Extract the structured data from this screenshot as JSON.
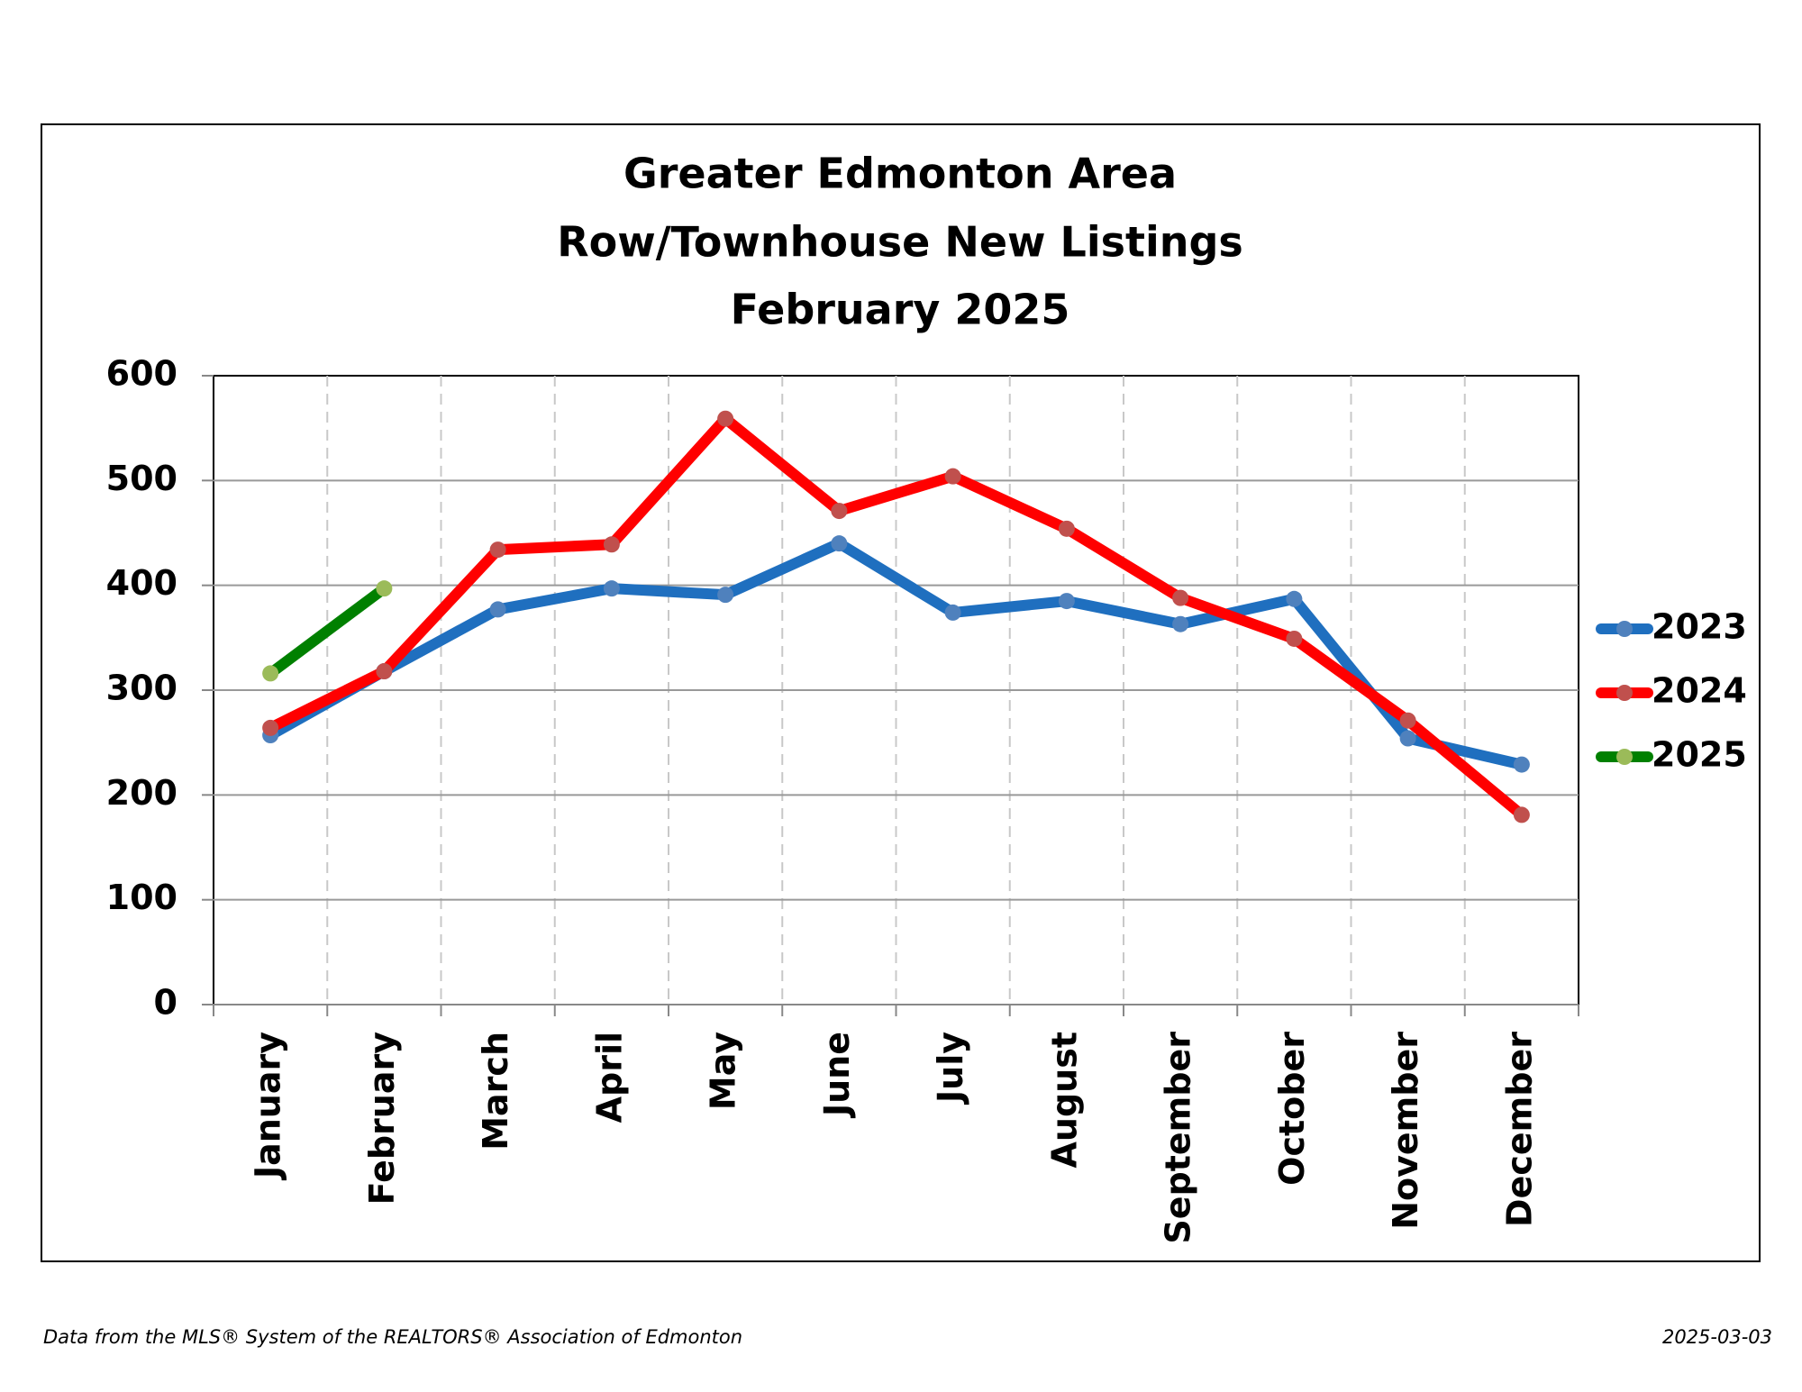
{
  "chart_data": {
    "type": "line",
    "title": [
      "Greater Edmonton Area",
      "Row/Townhouse New Listings",
      "February 2025"
    ],
    "categories": [
      "January",
      "February",
      "March",
      "April",
      "May",
      "June",
      "July",
      "August",
      "September",
      "October",
      "November",
      "December"
    ],
    "series": [
      {
        "name": "2023",
        "color": "#1f6fbf",
        "marker_color": "#4f81bd",
        "values": [
          257,
          318,
          377,
          397,
          391,
          440,
          374,
          385,
          363,
          387,
          254,
          229
        ]
      },
      {
        "name": "2024",
        "color": "#ff0000",
        "marker_color": "#c0504d",
        "values": [
          264,
          318,
          434,
          439,
          559,
          471,
          504,
          454,
          388,
          349,
          271,
          181
        ]
      },
      {
        "name": "2025",
        "color": "#008000",
        "marker_color": "#9bbb59",
        "values": [
          316,
          397,
          null,
          null,
          null,
          null,
          null,
          null,
          null,
          null,
          null,
          null
        ]
      }
    ],
    "ylim": [
      0,
      600
    ],
    "yticks": [
      0,
      100,
      200,
      300,
      400,
      500,
      600
    ],
    "grid": true,
    "legend": "right",
    "source": "Data from the MLS® System of the REALTORS® Association of Edmonton",
    "date": "2025-03-03"
  }
}
